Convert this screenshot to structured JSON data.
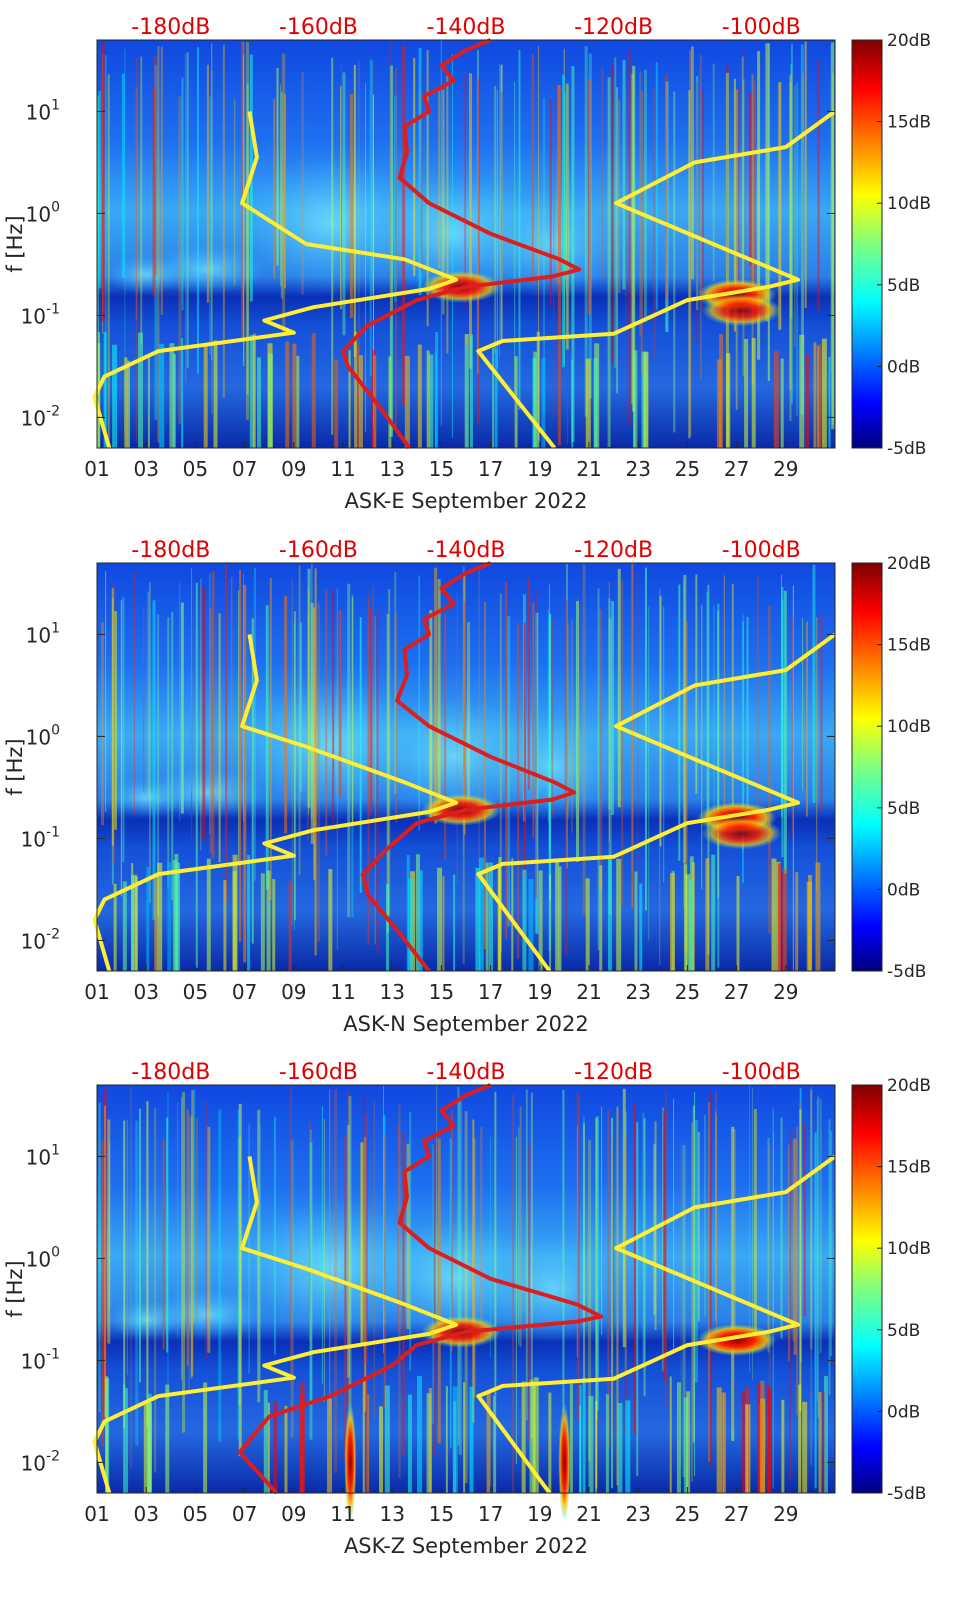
{
  "chart_data": [
    {
      "type": "heatmap",
      "title": "",
      "xlabel": "ASK-E September 2022",
      "ylabel": "f [Hz]",
      "x_ticks": [
        "01",
        "03",
        "05",
        "07",
        "09",
        "11",
        "13",
        "15",
        "17",
        "19",
        "21",
        "23",
        "25",
        "27",
        "29"
      ],
      "y_ticks": [
        "10^{-2}",
        "10^{-1}",
        "10^{0}",
        "10^{1}"
      ],
      "xlim": [
        1,
        31
      ],
      "ylim_log10": [
        -2.3,
        1.7
      ],
      "top_axis_labels": [
        "-180dB",
        "-160dB",
        "-140dB",
        "-120dB",
        "-100dB"
      ],
      "top_axis_range_dB": [
        -190,
        -90
      ],
      "colorbar": {
        "labels": [
          "20dB",
          "15dB",
          "10dB",
          "5dB",
          "0dB",
          "-5dB"
        ],
        "range": [
          -5,
          20
        ]
      },
      "hot_spots": [
        {
          "day": 15.8,
          "log_f": -0.72,
          "level": 18
        },
        {
          "day": 27.0,
          "log_f": -0.8,
          "level": 20
        },
        {
          "day": 27.2,
          "log_f": -0.95,
          "level": 17
        }
      ],
      "series": [
        {
          "name": "yellow",
          "color": "#ffee33",
          "points": [
            {
              "x": 7.2,
              "y": 1.0
            },
            {
              "x": 7.5,
              "y": 0.55
            },
            {
              "x": 6.9,
              "y": 0.1
            },
            {
              "x": 9.5,
              "y": -0.3
            },
            {
              "x": 13.5,
              "y": -0.45
            },
            {
              "x": 15.6,
              "y": -0.65
            },
            {
              "x": 14.5,
              "y": -0.74
            },
            {
              "x": 9.8,
              "y": -0.92
            },
            {
              "x": 7.8,
              "y": -1.05
            },
            {
              "x": 9.0,
              "y": -1.17
            },
            {
              "x": 3.5,
              "y": -1.35
            },
            {
              "x": 1.3,
              "y": -1.6
            },
            {
              "x": 0.9,
              "y": -1.8
            },
            {
              "x": 1.5,
              "y": -2.3
            }
          ]
        },
        {
          "name": "yellow",
          "color": "#ffee33",
          "points": [
            {
              "x": 19.6,
              "y": -2.3
            },
            {
              "x": 16.5,
              "y": -1.35
            },
            {
              "x": 17.5,
              "y": -1.25
            },
            {
              "x": 22.0,
              "y": -1.18
            },
            {
              "x": 25.0,
              "y": -0.85
            },
            {
              "x": 28.3,
              "y": -0.72
            },
            {
              "x": 29.5,
              "y": -0.65
            },
            {
              "x": 22.1,
              "y": 0.1
            },
            {
              "x": 25.3,
              "y": 0.5
            },
            {
              "x": 29.0,
              "y": 0.65
            },
            {
              "x": 31.0,
              "y": 1.0
            }
          ]
        },
        {
          "name": "red",
          "color": "#dd1e1e",
          "points": [
            {
              "x": 13.7,
              "y": -2.3
            },
            {
              "x": 12.5,
              "y": -1.9
            },
            {
              "x": 11.2,
              "y": -1.5
            },
            {
              "x": 11.0,
              "y": -1.35
            },
            {
              "x": 12.0,
              "y": -1.1
            },
            {
              "x": 14.0,
              "y": -0.85
            },
            {
              "x": 16.0,
              "y": -0.72
            },
            {
              "x": 19.5,
              "y": -0.62
            },
            {
              "x": 20.6,
              "y": -0.55
            },
            {
              "x": 19.8,
              "y": -0.45
            },
            {
              "x": 17.0,
              "y": -0.2
            },
            {
              "x": 14.5,
              "y": 0.1
            },
            {
              "x": 13.3,
              "y": 0.35
            },
            {
              "x": 13.6,
              "y": 0.6
            },
            {
              "x": 13.5,
              "y": 0.85
            },
            {
              "x": 14.5,
              "y": 1.0
            },
            {
              "x": 14.3,
              "y": 1.15
            },
            {
              "x": 15.5,
              "y": 1.3
            },
            {
              "x": 15.0,
              "y": 1.45
            },
            {
              "x": 16.0,
              "y": 1.6
            },
            {
              "x": 17.0,
              "y": 1.7
            }
          ]
        }
      ]
    },
    {
      "type": "heatmap",
      "title": "",
      "xlabel": "ASK-N September 2022",
      "ylabel": "f [Hz]",
      "x_ticks": [
        "01",
        "03",
        "05",
        "07",
        "09",
        "11",
        "13",
        "15",
        "17",
        "19",
        "21",
        "23",
        "25",
        "27",
        "29"
      ],
      "y_ticks": [
        "10^{-2}",
        "10^{-1}",
        "10^{0}",
        "10^{1}"
      ],
      "xlim": [
        1,
        31
      ],
      "ylim_log10": [
        -2.3,
        1.7
      ],
      "top_axis_labels": [
        "-180dB",
        "-160dB",
        "-140dB",
        "-120dB",
        "-100dB"
      ],
      "top_axis_range_dB": [
        -190,
        -90
      ],
      "colorbar": {
        "labels": [
          "20dB",
          "15dB",
          "10dB",
          "5dB",
          "0dB",
          "-5dB"
        ],
        "range": [
          -5,
          20
        ]
      },
      "hot_spots": [
        {
          "day": 15.8,
          "log_f": -0.72,
          "level": 18
        },
        {
          "day": 27.0,
          "log_f": -0.8,
          "level": 20
        },
        {
          "day": 27.2,
          "log_f": -0.95,
          "level": 17
        }
      ],
      "series": [
        {
          "name": "yellow",
          "color": "#ffee33",
          "points": [
            {
              "x": 7.2,
              "y": 1.0
            },
            {
              "x": 7.5,
              "y": 0.55
            },
            {
              "x": 6.9,
              "y": 0.1
            },
            {
              "x": 9.5,
              "y": -0.1
            },
            {
              "x": 13.5,
              "y": -0.45
            },
            {
              "x": 15.6,
              "y": -0.65
            },
            {
              "x": 14.5,
              "y": -0.74
            },
            {
              "x": 9.8,
              "y": -0.92
            },
            {
              "x": 7.8,
              "y": -1.05
            },
            {
              "x": 9.0,
              "y": -1.17
            },
            {
              "x": 3.5,
              "y": -1.35
            },
            {
              "x": 1.3,
              "y": -1.6
            },
            {
              "x": 0.9,
              "y": -1.8
            },
            {
              "x": 1.5,
              "y": -2.3
            }
          ]
        },
        {
          "name": "yellow",
          "color": "#ffee33",
          "points": [
            {
              "x": 19.4,
              "y": -2.3
            },
            {
              "x": 16.5,
              "y": -1.35
            },
            {
              "x": 17.5,
              "y": -1.25
            },
            {
              "x": 22.0,
              "y": -1.18
            },
            {
              "x": 25.0,
              "y": -0.85
            },
            {
              "x": 28.3,
              "y": -0.72
            },
            {
              "x": 29.5,
              "y": -0.65
            },
            {
              "x": 22.1,
              "y": 0.1
            },
            {
              "x": 25.3,
              "y": 0.5
            },
            {
              "x": 29.0,
              "y": 0.65
            },
            {
              "x": 31.0,
              "y": 1.0
            }
          ]
        },
        {
          "name": "red",
          "color": "#dd1e1e",
          "points": [
            {
              "x": 14.5,
              "y": -2.3
            },
            {
              "x": 13.2,
              "y": -1.9
            },
            {
              "x": 12.0,
              "y": -1.55
            },
            {
              "x": 11.8,
              "y": -1.35
            },
            {
              "x": 12.8,
              "y": -1.1
            },
            {
              "x": 14.0,
              "y": -0.85
            },
            {
              "x": 16.0,
              "y": -0.72
            },
            {
              "x": 19.5,
              "y": -0.62
            },
            {
              "x": 20.4,
              "y": -0.55
            },
            {
              "x": 19.6,
              "y": -0.45
            },
            {
              "x": 17.0,
              "y": -0.2
            },
            {
              "x": 14.5,
              "y": 0.1
            },
            {
              "x": 13.2,
              "y": 0.35
            },
            {
              "x": 13.6,
              "y": 0.6
            },
            {
              "x": 13.5,
              "y": 0.85
            },
            {
              "x": 14.5,
              "y": 1.0
            },
            {
              "x": 14.3,
              "y": 1.15
            },
            {
              "x": 15.5,
              "y": 1.3
            },
            {
              "x": 15.0,
              "y": 1.45
            },
            {
              "x": 16.0,
              "y": 1.6
            },
            {
              "x": 17.0,
              "y": 1.7
            }
          ]
        }
      ]
    },
    {
      "type": "heatmap",
      "title": "",
      "xlabel": "ASK-Z September 2022",
      "ylabel": "f [Hz]",
      "x_ticks": [
        "01",
        "03",
        "05",
        "07",
        "09",
        "11",
        "13",
        "15",
        "17",
        "19",
        "21",
        "23",
        "25",
        "27",
        "29"
      ],
      "y_ticks": [
        "10^{-2}",
        "10^{-1}",
        "10^{0}",
        "10^{1}"
      ],
      "xlim": [
        1,
        31
      ],
      "ylim_log10": [
        -2.3,
        1.7
      ],
      "top_axis_labels": [
        "-180dB",
        "-160dB",
        "-140dB",
        "-120dB",
        "-100dB"
      ],
      "top_axis_range_dB": [
        -190,
        -90
      ],
      "colorbar": {
        "labels": [
          "20dB",
          "15dB",
          "10dB",
          "5dB",
          "0dB",
          "-5dB"
        ],
        "range": [
          -5,
          20
        ]
      },
      "hot_spots": [
        {
          "day": 15.8,
          "log_f": -0.72,
          "level": 18
        },
        {
          "day": 27.0,
          "log_f": -0.8,
          "level": 20
        },
        {
          "day": 11.3,
          "log_f": -2.0,
          "level": 20
        },
        {
          "day": 20.0,
          "log_f": -2.0,
          "level": 20
        }
      ],
      "series": [
        {
          "name": "yellow",
          "color": "#ffee33",
          "points": [
            {
              "x": 7.2,
              "y": 1.0
            },
            {
              "x": 7.5,
              "y": 0.55
            },
            {
              "x": 6.9,
              "y": 0.1
            },
            {
              "x": 9.5,
              "y": -0.1
            },
            {
              "x": 13.5,
              "y": -0.45
            },
            {
              "x": 15.6,
              "y": -0.65
            },
            {
              "x": 14.5,
              "y": -0.74
            },
            {
              "x": 9.8,
              "y": -0.92
            },
            {
              "x": 7.8,
              "y": -1.05
            },
            {
              "x": 9.0,
              "y": -1.17
            },
            {
              "x": 3.5,
              "y": -1.35
            },
            {
              "x": 1.3,
              "y": -1.6
            },
            {
              "x": 0.9,
              "y": -1.8
            },
            {
              "x": 1.5,
              "y": -2.3
            }
          ]
        },
        {
          "name": "yellow",
          "color": "#ffee33",
          "points": [
            {
              "x": 19.4,
              "y": -2.3
            },
            {
              "x": 16.5,
              "y": -1.35
            },
            {
              "x": 17.5,
              "y": -1.25
            },
            {
              "x": 22.0,
              "y": -1.18
            },
            {
              "x": 25.0,
              "y": -0.85
            },
            {
              "x": 28.3,
              "y": -0.72
            },
            {
              "x": 29.5,
              "y": -0.65
            },
            {
              "x": 22.1,
              "y": 0.1
            },
            {
              "x": 25.3,
              "y": 0.5
            },
            {
              "x": 29.0,
              "y": 0.65
            },
            {
              "x": 31.0,
              "y": 1.0
            }
          ]
        },
        {
          "name": "red",
          "color": "#dd1e1e",
          "points": [
            {
              "x": 8.3,
              "y": -2.3
            },
            {
              "x": 6.8,
              "y": -1.9
            },
            {
              "x": 8.0,
              "y": -1.55
            },
            {
              "x": 10.5,
              "y": -1.35
            },
            {
              "x": 13.0,
              "y": -1.05
            },
            {
              "x": 14.0,
              "y": -0.85
            },
            {
              "x": 16.0,
              "y": -0.72
            },
            {
              "x": 20.5,
              "y": -0.62
            },
            {
              "x": 21.5,
              "y": -0.57
            },
            {
              "x": 20.5,
              "y": -0.45
            },
            {
              "x": 17.0,
              "y": -0.2
            },
            {
              "x": 14.5,
              "y": 0.1
            },
            {
              "x": 13.3,
              "y": 0.35
            },
            {
              "x": 13.6,
              "y": 0.6
            },
            {
              "x": 13.5,
              "y": 0.85
            },
            {
              "x": 14.5,
              "y": 1.0
            },
            {
              "x": 14.3,
              "y": 1.15
            },
            {
              "x": 15.5,
              "y": 1.3
            },
            {
              "x": 15.0,
              "y": 1.45
            },
            {
              "x": 16.0,
              "y": 1.6
            },
            {
              "x": 17.0,
              "y": 1.7
            }
          ]
        }
      ]
    }
  ]
}
